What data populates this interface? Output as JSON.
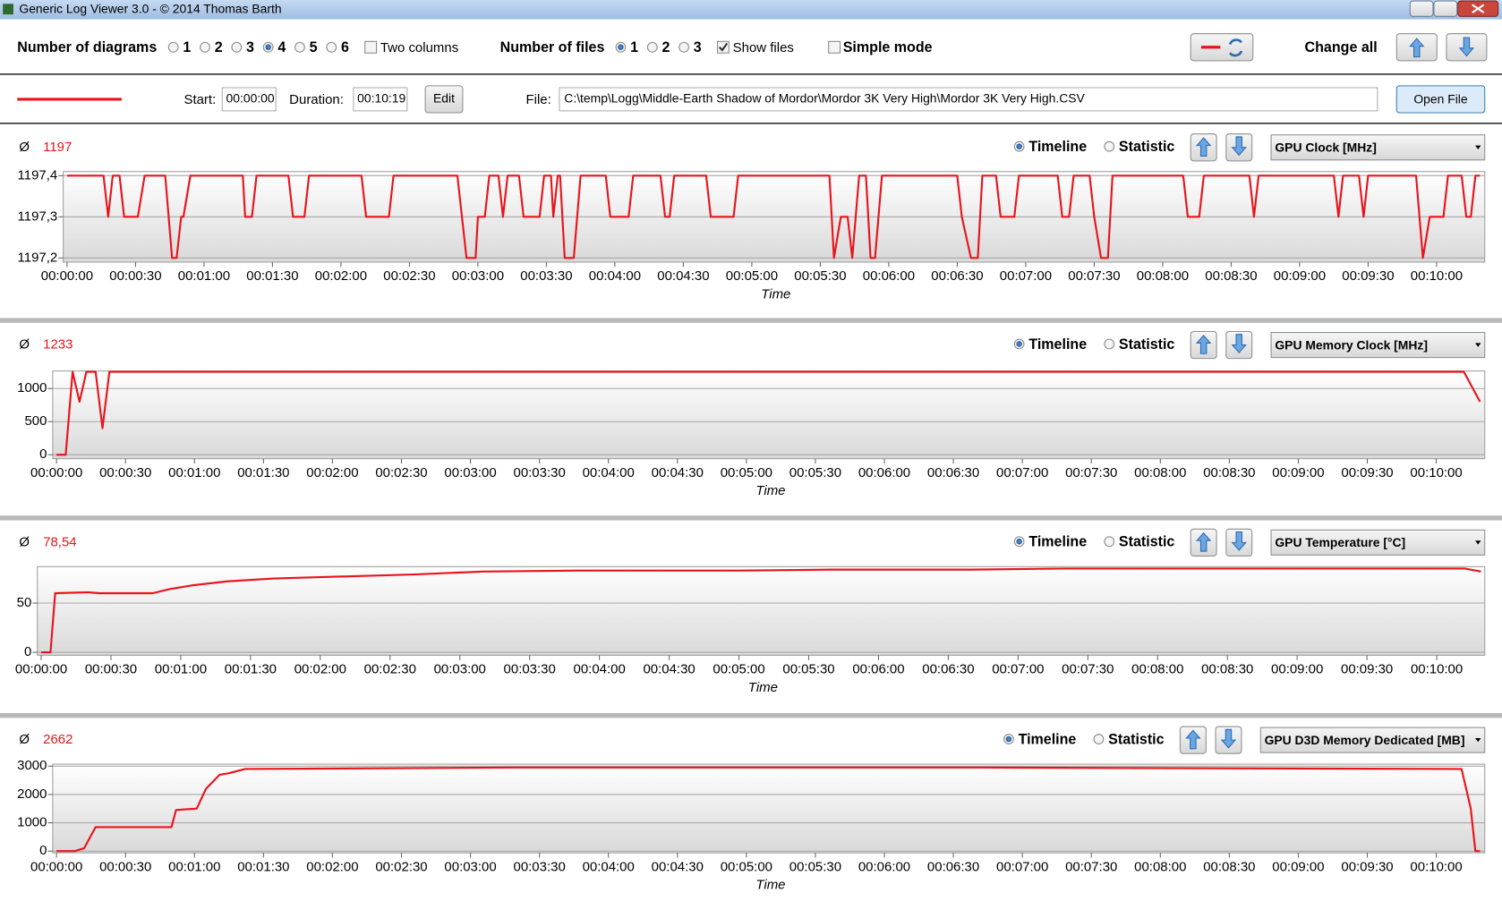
{
  "window": {
    "title": "Generic Log Viewer 3.0 - © 2014 Thomas Barth"
  },
  "toolbar": {
    "diagrams_label": "Number of diagrams",
    "diagram_options": [
      "1",
      "2",
      "3",
      "4",
      "5",
      "6"
    ],
    "two_columns": "Two columns",
    "files_label": "Number of files",
    "file_options": [
      "1",
      "2",
      "3"
    ],
    "show_files": "Show files",
    "simple_mode": "Simple mode",
    "change_all": "Change all"
  },
  "file_bar": {
    "start_label": "Start:",
    "start": "00:00:00",
    "duration_label": "Duration:",
    "duration": "00:10:19",
    "edit": "Edit",
    "file_label": "File:",
    "file": "C:\\temp\\Logg\\Middle-Earth Shadow of Mordor\\Mordor 3K Very High\\Mordor 3K Very High.CSV",
    "open_file": "Open File"
  },
  "panels": [
    {
      "average_symbol": "Ø",
      "average": "1197",
      "timeline": "Timeline",
      "statistic": "Statistic",
      "sensor": "GPU Clock [MHz]"
    },
    {
      "average_symbol": "Ø",
      "average": "1233",
      "timeline": "Timeline",
      "statistic": "Statistic",
      "sensor": "GPU Memory Clock [MHz]"
    },
    {
      "average_symbol": "Ø",
      "average": "78,54",
      "timeline": "Timeline",
      "statistic": "Statistic",
      "sensor": "GPU Temperature [°C]"
    },
    {
      "average_symbol": "Ø",
      "average": "2662",
      "timeline": "Timeline",
      "statistic": "Statistic",
      "sensor": "GPU D3D Memory Dedicated [MB]"
    }
  ],
  "chart_data": [
    {
      "type": "line",
      "x_label": "Time",
      "color": "#e8141c",
      "grid": true,
      "x": [
        0,
        16,
        18,
        20,
        23,
        25,
        31,
        34,
        43,
        46,
        48,
        50,
        51,
        54,
        77,
        78,
        81,
        83,
        97,
        99,
        104,
        106,
        129,
        131,
        141,
        143,
        171,
        175,
        179,
        180,
        183,
        185,
        189,
        191,
        193,
        198,
        200,
        207,
        209,
        212,
        213,
        215,
        216,
        218,
        222,
        225,
        236,
        238,
        246,
        248,
        260,
        262,
        264,
        266,
        280,
        282,
        292,
        294,
        334,
        336,
        339,
        342,
        344,
        347,
        350,
        352,
        354,
        357,
        390,
        392,
        396,
        399,
        401,
        407,
        409,
        415,
        417,
        434,
        436,
        439,
        441,
        448,
        450,
        453,
        456,
        458,
        489,
        491,
        496,
        498,
        518,
        520,
        522,
        555,
        557,
        559,
        566,
        568,
        570,
        591,
        594,
        597,
        603,
        605,
        611,
        613,
        615,
        617,
        619
      ],
      "values": [
        1197.4,
        1197.4,
        1197.3,
        1197.4,
        1197.4,
        1197.3,
        1197.3,
        1197.4,
        1197.4,
        1197.2,
        1197.2,
        1197.3,
        1197.3,
        1197.4,
        1197.4,
        1197.3,
        1197.3,
        1197.4,
        1197.4,
        1197.3,
        1197.3,
        1197.4,
        1197.4,
        1197.3,
        1197.3,
        1197.4,
        1197.4,
        1197.2,
        1197.2,
        1197.3,
        1197.3,
        1197.4,
        1197.4,
        1197.3,
        1197.4,
        1197.4,
        1197.3,
        1197.3,
        1197.4,
        1197.4,
        1197.3,
        1197.4,
        1197.4,
        1197.2,
        1197.2,
        1197.4,
        1197.4,
        1197.3,
        1197.3,
        1197.4,
        1197.4,
        1197.3,
        1197.3,
        1197.4,
        1197.4,
        1197.3,
        1197.3,
        1197.4,
        1197.4,
        1197.2,
        1197.3,
        1197.3,
        1197.2,
        1197.4,
        1197.4,
        1197.2,
        1197.2,
        1197.4,
        1197.4,
        1197.3,
        1197.2,
        1197.2,
        1197.4,
        1197.4,
        1197.3,
        1197.3,
        1197.4,
        1197.4,
        1197.3,
        1197.3,
        1197.4,
        1197.4,
        1197.3,
        1197.2,
        1197.2,
        1197.4,
        1197.4,
        1197.3,
        1197.3,
        1197.4,
        1197.4,
        1197.3,
        1197.4,
        1197.4,
        1197.3,
        1197.4,
        1197.4,
        1197.3,
        1197.4,
        1197.4,
        1197.2,
        1197.3,
        1197.3,
        1197.4,
        1197.4,
        1197.3,
        1197.3,
        1197.4,
        1197.4
      ],
      "xlim": [
        0,
        619
      ],
      "xticks": [
        {
          "value": 0,
          "label": "00:00:00"
        },
        {
          "value": 30,
          "label": "00:00:30"
        },
        {
          "value": 60,
          "label": "00:01:00"
        },
        {
          "value": 90,
          "label": "00:01:30"
        },
        {
          "value": 120,
          "label": "00:02:00"
        },
        {
          "value": 150,
          "label": "00:02:30"
        },
        {
          "value": 180,
          "label": "00:03:00"
        },
        {
          "value": 210,
          "label": "00:03:30"
        },
        {
          "value": 240,
          "label": "00:04:00"
        },
        {
          "value": 270,
          "label": "00:04:30"
        },
        {
          "value": 300,
          "label": "00:05:00"
        },
        {
          "value": 330,
          "label": "00:05:30"
        },
        {
          "value": 360,
          "label": "00:06:00"
        },
        {
          "value": 390,
          "label": "00:06:30"
        },
        {
          "value": 420,
          "label": "00:07:00"
        },
        {
          "value": 450,
          "label": "00:07:30"
        },
        {
          "value": 480,
          "label": "00:08:00"
        },
        {
          "value": 510,
          "label": "00:08:30"
        },
        {
          "value": 540,
          "label": "00:09:00"
        },
        {
          "value": 570,
          "label": "00:09:30"
        },
        {
          "value": 600,
          "label": "00:10:00"
        }
      ],
      "ylim": [
        1197.19,
        1197.41
      ],
      "yticks": [
        {
          "value": 1197.2,
          "label": "1197,2"
        },
        {
          "value": 1197.3,
          "label": "1197,3"
        },
        {
          "value": 1197.4,
          "label": "1197,4"
        }
      ]
    },
    {
      "type": "line",
      "x_label": "Time",
      "color": "#e8141c",
      "grid": true,
      "x": [
        0,
        4,
        7,
        10,
        13,
        17,
        20,
        23,
        612,
        619
      ],
      "values": [
        0,
        0,
        1253,
        800,
        1253,
        1253,
        400,
        1253,
        1253,
        800
      ],
      "xlim": [
        0,
        619
      ],
      "xticks": [
        {
          "value": 0,
          "label": "00:00:00"
        },
        {
          "value": 30,
          "label": "00:00:30"
        },
        {
          "value": 60,
          "label": "00:01:00"
        },
        {
          "value": 90,
          "label": "00:01:30"
        },
        {
          "value": 120,
          "label": "00:02:00"
        },
        {
          "value": 150,
          "label": "00:02:30"
        },
        {
          "value": 180,
          "label": "00:03:00"
        },
        {
          "value": 210,
          "label": "00:03:30"
        },
        {
          "value": 240,
          "label": "00:04:00"
        },
        {
          "value": 270,
          "label": "00:04:30"
        },
        {
          "value": 300,
          "label": "00:05:00"
        },
        {
          "value": 330,
          "label": "00:05:30"
        },
        {
          "value": 360,
          "label": "00:06:00"
        },
        {
          "value": 390,
          "label": "00:06:30"
        },
        {
          "value": 420,
          "label": "00:07:00"
        },
        {
          "value": 450,
          "label": "00:07:30"
        },
        {
          "value": 480,
          "label": "00:08:00"
        },
        {
          "value": 510,
          "label": "00:08:30"
        },
        {
          "value": 540,
          "label": "00:09:00"
        },
        {
          "value": 570,
          "label": "00:09:30"
        },
        {
          "value": 600,
          "label": "00:10:00"
        }
      ],
      "ylim": [
        -60,
        1265
      ],
      "yticks": [
        0,
        500,
        1000
      ]
    },
    {
      "type": "line",
      "x_label": "Time",
      "color": "#e8141c",
      "grid": true,
      "x": [
        0,
        4,
        6,
        20,
        25,
        48,
        55,
        65,
        80,
        100,
        130,
        160,
        190,
        230,
        300,
        340,
        400,
        440,
        600,
        612,
        619
      ],
      "values": [
        0,
        0,
        60,
        61,
        60,
        60,
        64,
        68,
        72,
        75,
        77,
        79,
        82,
        83,
        83,
        84,
        84,
        85,
        85,
        85,
        82
      ],
      "xlim": [
        0,
        619
      ],
      "xticks": [
        {
          "value": 0,
          "label": "00:00:00"
        },
        {
          "value": 30,
          "label": "00:00:30"
        },
        {
          "value": 60,
          "label": "00:01:00"
        },
        {
          "value": 90,
          "label": "00:01:30"
        },
        {
          "value": 120,
          "label": "00:02:00"
        },
        {
          "value": 150,
          "label": "00:02:30"
        },
        {
          "value": 180,
          "label": "00:03:00"
        },
        {
          "value": 210,
          "label": "00:03:30"
        },
        {
          "value": 240,
          "label": "00:04:00"
        },
        {
          "value": 270,
          "label": "00:04:30"
        },
        {
          "value": 300,
          "label": "00:05:00"
        },
        {
          "value": 330,
          "label": "00:05:30"
        },
        {
          "value": 360,
          "label": "00:06:00"
        },
        {
          "value": 390,
          "label": "00:06:30"
        },
        {
          "value": 420,
          "label": "00:07:00"
        },
        {
          "value": 450,
          "label": "00:07:30"
        },
        {
          "value": 480,
          "label": "00:08:00"
        },
        {
          "value": 510,
          "label": "00:08:30"
        },
        {
          "value": 540,
          "label": "00:09:00"
        },
        {
          "value": 570,
          "label": "00:09:30"
        },
        {
          "value": 600,
          "label": "00:10:00"
        }
      ],
      "ylim": [
        -3,
        87
      ],
      "yticks": [
        0,
        50
      ]
    },
    {
      "type": "line",
      "x_label": "Time",
      "color": "#e8141c",
      "grid": true,
      "x": [
        0,
        8,
        12,
        14,
        17,
        50,
        52,
        61,
        65,
        71,
        75,
        82,
        200,
        400,
        611,
        615,
        617,
        619
      ],
      "values": [
        0,
        0,
        100,
        400,
        850,
        850,
        1450,
        1500,
        2200,
        2700,
        2750,
        2900,
        2950,
        2950,
        2900,
        1500,
        0,
        0
      ],
      "xlim": [
        0,
        619
      ],
      "xticks": [
        {
          "value": 0,
          "label": "00:00:00"
        },
        {
          "value": 30,
          "label": "00:00:30"
        },
        {
          "value": 60,
          "label": "00:01:00"
        },
        {
          "value": 90,
          "label": "00:01:30"
        },
        {
          "value": 120,
          "label": "00:02:00"
        },
        {
          "value": 150,
          "label": "00:02:30"
        },
        {
          "value": 180,
          "label": "00:03:00"
        },
        {
          "value": 210,
          "label": "00:03:30"
        },
        {
          "value": 240,
          "label": "00:04:00"
        },
        {
          "value": 270,
          "label": "00:04:30"
        },
        {
          "value": 300,
          "label": "00:05:00"
        },
        {
          "value": 330,
          "label": "00:05:30"
        },
        {
          "value": 360,
          "label": "00:06:00"
        },
        {
          "value": 390,
          "label": "00:06:30"
        },
        {
          "value": 420,
          "label": "00:07:00"
        },
        {
          "value": 450,
          "label": "00:07:30"
        },
        {
          "value": 480,
          "label": "00:08:00"
        },
        {
          "value": 510,
          "label": "00:08:30"
        },
        {
          "value": 540,
          "label": "00:09:00"
        },
        {
          "value": 570,
          "label": "00:09:30"
        },
        {
          "value": 600,
          "label": "00:10:00"
        }
      ],
      "ylim": [
        -60,
        3070
      ],
      "yticks": [
        0,
        1000,
        2000,
        3000
      ]
    }
  ]
}
